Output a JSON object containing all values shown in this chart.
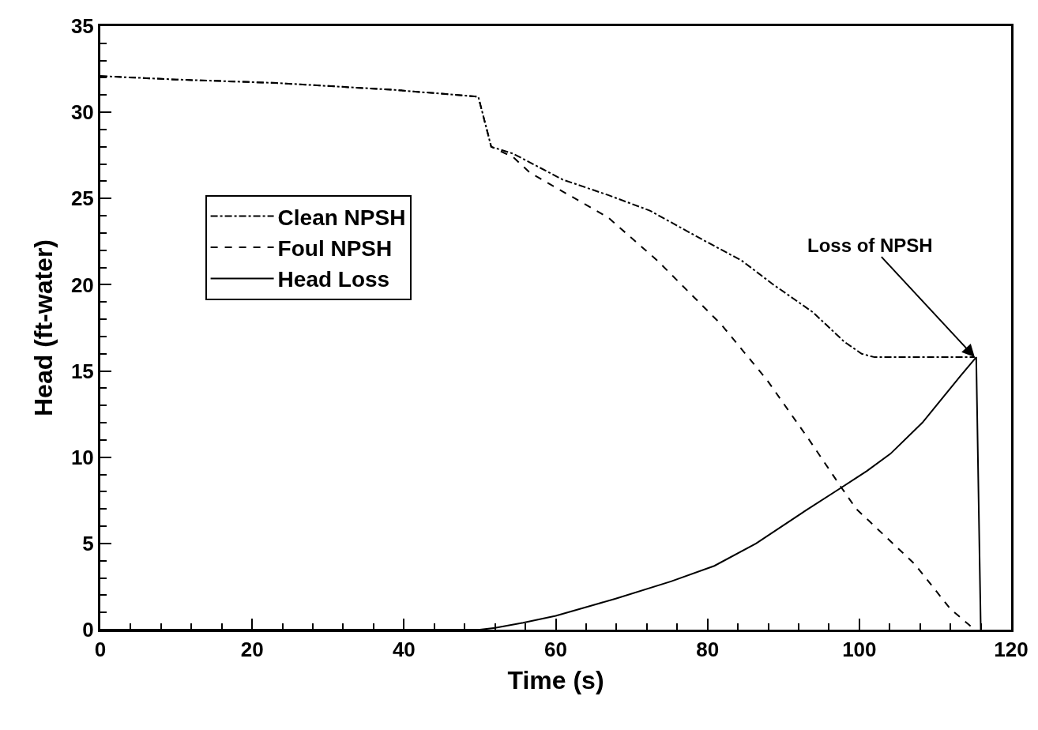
{
  "chart_data": {
    "type": "line",
    "xlabel": "Time (s)",
    "ylabel": "Head (ft-water)",
    "xlim": [
      0,
      120
    ],
    "xticks": [
      0,
      20,
      40,
      60,
      80,
      100,
      120
    ],
    "ylim": [
      0,
      35
    ],
    "yticks": [
      0,
      5,
      10,
      15,
      20,
      25,
      30,
      35
    ],
    "grid": false,
    "legend": "left",
    "marker": "none",
    "annotations": [
      {
        "text": "Loss of NPSH",
        "x": 115.2,
        "y": 15.8
      }
    ],
    "series": [
      {
        "name": "Clean NPSH",
        "color": "#000000",
        "line_style": "dashdot",
        "x": [
          0,
          10,
          23.2,
          38.8,
          49.8,
          50.8,
          51.5,
          54.4,
          60.9,
          66.9,
          72.4,
          79.4,
          84.5,
          88.7,
          93.9,
          98,
          100.3,
          102,
          115.2
        ],
        "values": [
          32.1,
          31.9,
          31.7,
          31.3,
          30.9,
          29.2,
          28,
          27.6,
          26.1,
          25.2,
          24.3,
          22.6,
          21.4,
          20,
          18.4,
          16.7,
          16,
          15.8,
          15.8
        ]
      },
      {
        "name": "Foul NPSH",
        "color": "#000000",
        "line_style": "dashed",
        "x": [
          0,
          10,
          23.2,
          38.8,
          49.8,
          50.8,
          51.5,
          54.4,
          56.6,
          66.9,
          73.4,
          81.8,
          87.8,
          93.4,
          97.7,
          99.6,
          107.3,
          112,
          115.2
        ],
        "values": [
          32.1,
          31.9,
          31.7,
          31.3,
          30.9,
          29.2,
          28,
          27.4,
          26.5,
          23.9,
          21.4,
          17.7,
          14.5,
          11,
          8.2,
          7,
          3.8,
          1.2,
          0
        ]
      },
      {
        "name": "Head Loss",
        "color": "#000000",
        "line_style": "solid",
        "x": [
          0,
          50,
          52,
          55.7,
          60,
          67.9,
          75.2,
          80.9,
          86.4,
          92.9,
          97.5,
          99.6,
          101,
          104.1,
          108.3,
          113.3,
          115.4,
          116
        ],
        "values": [
          0,
          0,
          0.1,
          0.4,
          0.8,
          1.8,
          2.8,
          3.7,
          5,
          6.9,
          8.2,
          8.8,
          9.2,
          10.2,
          12,
          14.7,
          15.8,
          0
        ]
      }
    ]
  }
}
